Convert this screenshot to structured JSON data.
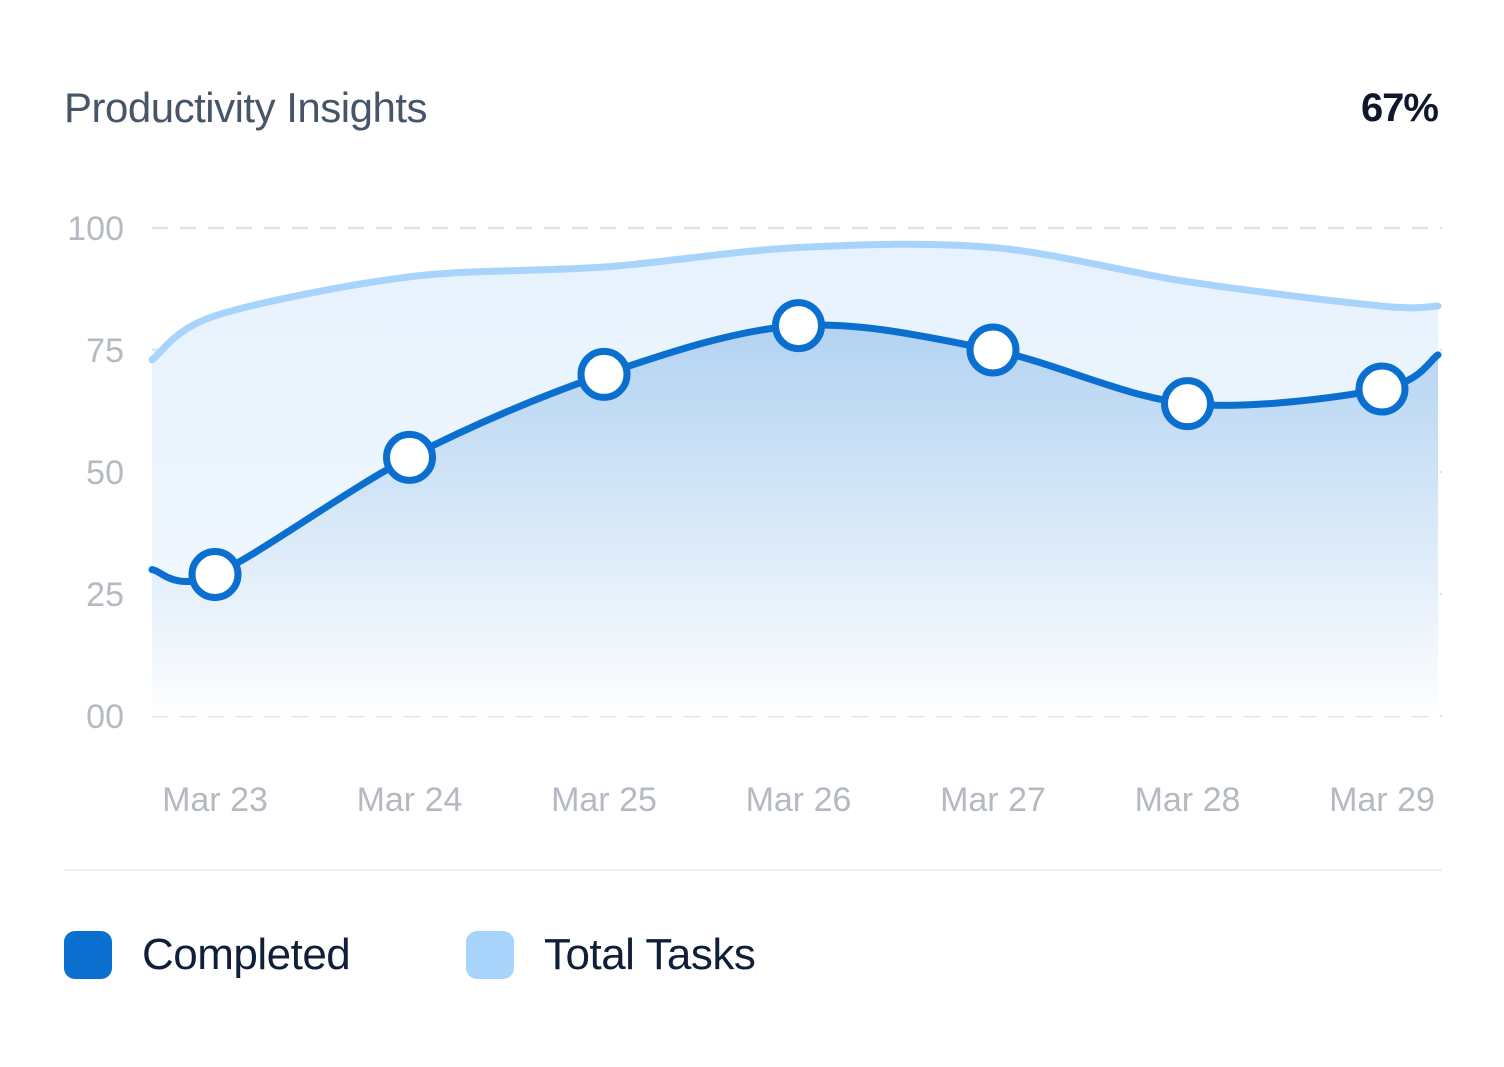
{
  "header": {
    "title": "Productivity Insights",
    "percentage": "67%"
  },
  "colors": {
    "completed": "#0b6fcf",
    "total": "#a8d4fb",
    "fill_top": "#a9cdf0",
    "fill_bottom": "#ffffff",
    "grid": "#dfe3e8",
    "axis_text": "#b4b9c2"
  },
  "chart_data": {
    "type": "area",
    "title": "Productivity Insights",
    "categories": [
      "Mar 23",
      "Mar 24",
      "Mar 25",
      "Mar 26",
      "Mar 27",
      "Mar 28",
      "Mar 29"
    ],
    "y_ticks": [
      "100",
      "75",
      "50",
      "25",
      "00"
    ],
    "ylim": [
      0,
      100
    ],
    "grid": true,
    "series": [
      {
        "name": "Completed",
        "style": "line-with-markers",
        "values": [
          29,
          53,
          70,
          80,
          75,
          64,
          67
        ],
        "start_value": 30,
        "end_value": 74
      },
      {
        "name": "Total Tasks",
        "style": "line",
        "values": [
          82,
          90,
          92,
          96,
          96,
          89,
          84
        ],
        "start_value": 73,
        "end_value": 84
      }
    ],
    "legend": [
      "Completed",
      "Total Tasks"
    ],
    "legend_position": "bottom-left"
  },
  "legend": {
    "completed_label": "Completed",
    "total_label": "Total Tasks"
  }
}
